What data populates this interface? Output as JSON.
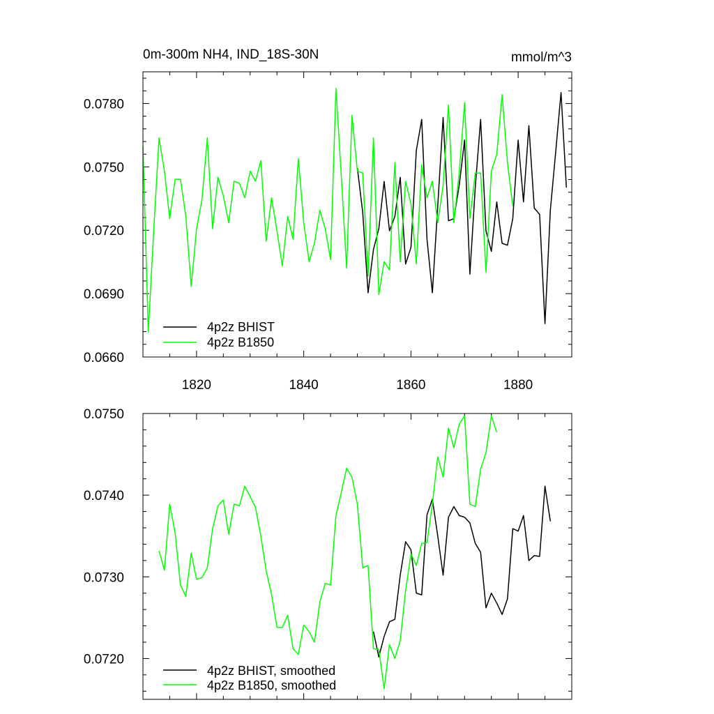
{
  "chart_data": [
    {
      "type": "line",
      "title": "0m-300m NH4, IND_18S-30N",
      "units": "mmol/m^3",
      "xlim": [
        1810,
        1890
      ],
      "ylim": [
        0.066,
        0.0795
      ],
      "x_ticks": [
        1820,
        1840,
        1860,
        1880
      ],
      "y_ticks": [
        "0.0660",
        "0.0690",
        "0.0720",
        "0.0750",
        "0.0780"
      ],
      "legend_position": "bottom-left",
      "series": [
        {
          "name": "4p2z BHIST",
          "color": "#000000",
          "x_start": 1850,
          "values": [
            0.07495,
            0.07285,
            0.06904,
            0.07109,
            0.07207,
            0.07431,
            0.07197,
            0.07265,
            0.07451,
            0.0704,
            0.07119,
            0.07578,
            0.07725,
            0.07158,
            0.06904,
            0.07314,
            0.07734,
            0.07245,
            0.07255,
            0.07412,
            0.07627,
            0.06992,
            0.07402,
            0.07725,
            0.07197,
            0.071,
            0.07334,
            0.07138,
            0.07129,
            0.07255,
            0.07627,
            0.07334,
            0.07695,
            0.07305,
            0.07275,
            0.06758,
            0.07295,
            0.07568,
            0.07852,
            0.07402
          ]
        },
        {
          "name": "4p2z B1850",
          "color": "#00ff00",
          "x_start": 1810,
          "values": [
            0.07598,
            0.06719,
            0.07197,
            0.07637,
            0.0748,
            0.07256,
            0.07441,
            0.07441,
            0.07266,
            0.06934,
            0.07207,
            0.07344,
            0.07637,
            0.07207,
            0.07451,
            0.07363,
            0.07236,
            0.07432,
            0.07422,
            0.07354,
            0.0748,
            0.07432,
            0.07529,
            0.07148,
            0.07354,
            0.07197,
            0.07031,
            0.07266,
            0.07158,
            0.07539,
            0.07236,
            0.07051,
            0.07139,
            0.07295,
            0.07207,
            0.07061,
            0.07871,
            0.07461,
            0.07021,
            0.07744,
            0.0748,
            0.07471,
            0.06982,
            0.07637,
            0.06895,
            0.07051,
            0.07012,
            0.0752,
            0.07051,
            0.07432,
            0.07324,
            0.07041,
            0.0751,
            0.07354,
            0.07432,
            0.07236,
            0.07412,
            0.07793,
            0.07236,
            0.07471,
            0.07803,
            0.07256,
            0.07471,
            0.07471,
            0.07002,
            0.0748,
            0.07559,
            0.07842,
            0.0752,
            0.07314
          ]
        }
      ]
    },
    {
      "type": "line",
      "xlim": [
        1810,
        1890
      ],
      "ylim": [
        0.0715,
        0.075
      ],
      "y_ticks": [
        "0.0720",
        "0.0730",
        "0.0740",
        "0.0750"
      ],
      "legend_position": "bottom-left",
      "series": [
        {
          "name": "4p2z BHIST, smoothed",
          "color": "#000000",
          "x_start": 1853,
          "values": [
            0.07233,
            0.07202,
            0.07227,
            0.07245,
            0.07248,
            0.07302,
            0.07343,
            0.07333,
            0.0728,
            0.07278,
            0.07376,
            0.07395,
            0.0735,
            0.07302,
            0.07373,
            0.07386,
            0.07375,
            0.07373,
            0.07366,
            0.07341,
            0.0733,
            0.07262,
            0.0728,
            0.07268,
            0.07254,
            0.07273,
            0.07359,
            0.07356,
            0.07375,
            0.0732,
            0.07326,
            0.07325,
            0.07411,
            0.07368
          ]
        },
        {
          "name": "4p2z B1850, smoothed",
          "color": "#00ff00",
          "x_start": 1813,
          "values": [
            0.07332,
            0.07308,
            0.07389,
            0.07354,
            0.0729,
            0.07276,
            0.07329,
            0.07297,
            0.07299,
            0.07311,
            0.07359,
            0.07387,
            0.07394,
            0.07352,
            0.07389,
            0.07387,
            0.07411,
            0.07398,
            0.07385,
            0.0735,
            0.07307,
            0.07278,
            0.07238,
            0.07238,
            0.07253,
            0.07212,
            0.07205,
            0.07241,
            0.07233,
            0.0722,
            0.07269,
            0.07292,
            0.0729,
            0.07375,
            0.07403,
            0.07433,
            0.07422,
            0.07389,
            0.07311,
            0.07314,
            0.07212,
            0.07211,
            0.07163,
            0.07217,
            0.072,
            0.07222,
            0.07283,
            0.07328,
            0.07314,
            0.07341,
            0.07342,
            0.07389,
            0.07447,
            0.07422,
            0.07482,
            0.07458,
            0.07487,
            0.07497,
            0.07389,
            0.07386,
            0.07432,
            0.07452,
            0.07497,
            0.07477
          ]
        }
      ]
    }
  ]
}
